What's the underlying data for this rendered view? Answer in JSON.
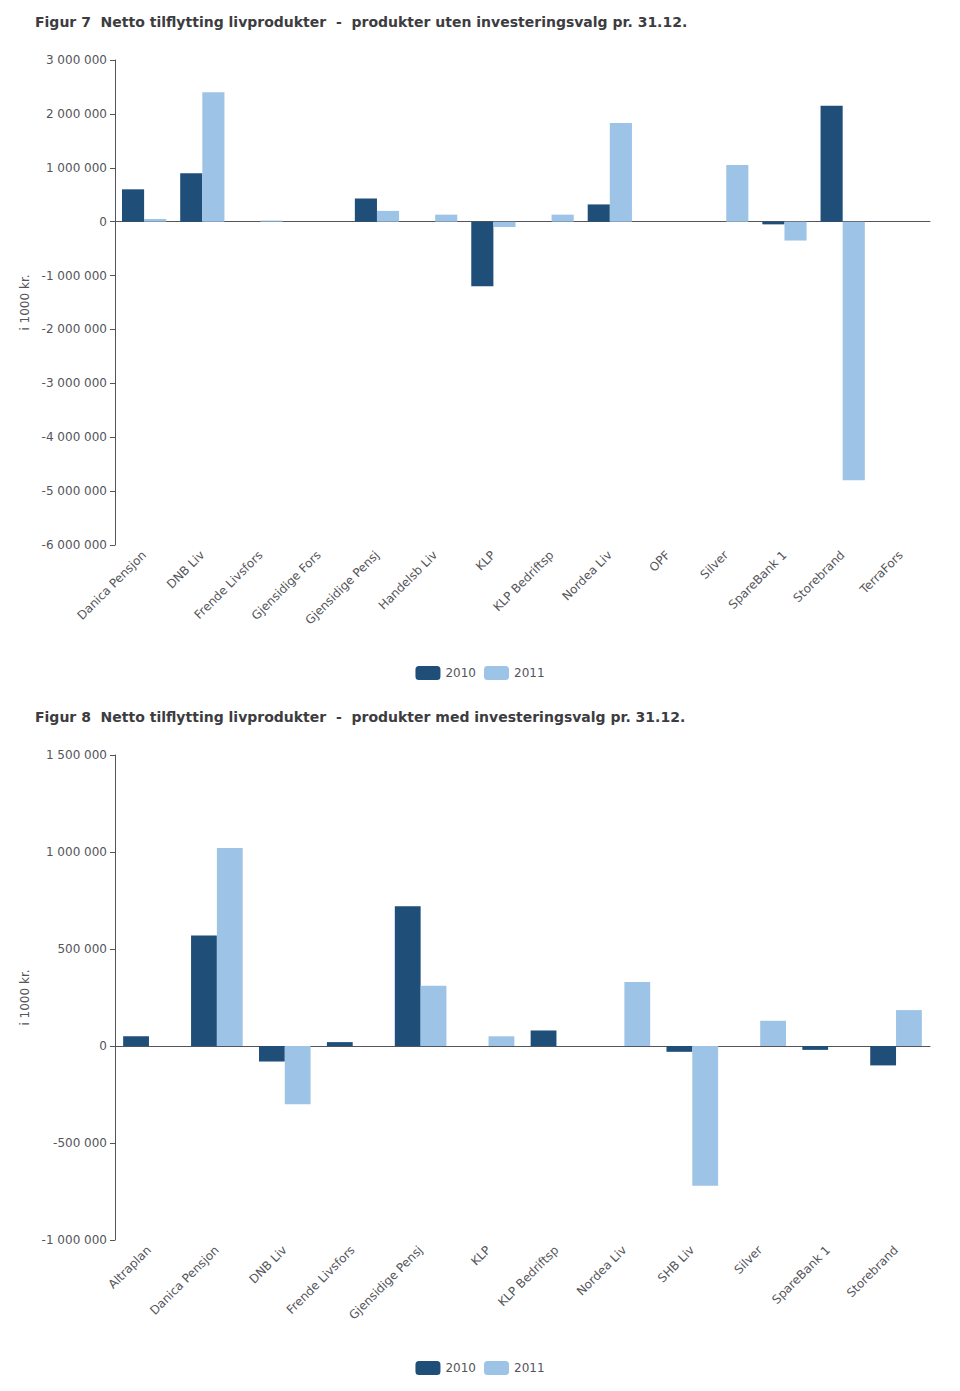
{
  "chart_data": [
    {
      "type": "bar",
      "title": "Figur 7  Netto tilflytting livprodukter  -  produkter uten investeringsvalg pr. 31.12.",
      "ylabel": "i 1000 kr.",
      "categories": [
        "Danica Pensjon",
        "DNB Liv",
        "Frende Livsfors",
        "Gjensidige Fors",
        "Gjensidige Pensj",
        "Handelsb Liv",
        "KLP",
        "KLP Bedriftsp",
        "Nordea Liv",
        "OPF",
        "Silver",
        "SpareBank 1",
        "Storebrand",
        "TerraFors"
      ],
      "series": [
        {
          "name": "2010",
          "color": "#1F4E79",
          "values": [
            600000,
            900000,
            0,
            0,
            430000,
            0,
            -1200000,
            0,
            320000,
            0,
            0,
            -50000,
            2150000,
            0
          ]
        },
        {
          "name": "2011",
          "color": "#9DC3E6",
          "values": [
            50000,
            2400000,
            20000,
            0,
            200000,
            130000,
            -100000,
            130000,
            1830000,
            0,
            1050000,
            -350000,
            -4800000,
            0
          ]
        }
      ],
      "ylim": [
        -6000000,
        3000000
      ],
      "yticks": [
        {
          "value": 3000000,
          "label": "3 000 000"
        },
        {
          "value": 2000000,
          "label": "2 000 000"
        },
        {
          "value": 1000000,
          "label": "1 000 000"
        },
        0,
        {
          "value": -1000000,
          "label": "-1 000 000"
        },
        {
          "value": -2000000,
          "label": "-2 000 000"
        },
        {
          "value": -3000000,
          "label": "-3 000 000"
        },
        {
          "value": -4000000,
          "label": "-4 000 000"
        },
        {
          "value": -5000000,
          "label": "-5 000 000"
        },
        {
          "value": -6000000,
          "label": "-6 000 000"
        }
      ],
      "grid": false,
      "legend": "bottom"
    },
    {
      "type": "bar",
      "title": "Figur 8  Netto tilflytting livprodukter  -  produkter med investeringsvalg pr. 31.12.",
      "ylabel": "i 1000 kr.",
      "categories": [
        "Altraplan",
        "Danica Pensjon",
        "DNB Liv",
        "Frende Livsfors",
        "Gjensidige Pensj",
        "KLP",
        "KLP Bedriftsp",
        "Nordea Liv",
        "SHB Liv",
        "Silver",
        "SpareBank 1",
        "Storebrand"
      ],
      "series": [
        {
          "name": "2010",
          "color": "#1F4E79",
          "values": [
            50000,
            570000,
            -80000,
            20000,
            720000,
            0,
            80000,
            0,
            -30000,
            0,
            -20000,
            -100000
          ]
        },
        {
          "name": "2011",
          "color": "#9DC3E6",
          "values": [
            0,
            1020000,
            -300000,
            0,
            310000,
            50000,
            0,
            330000,
            -720000,
            130000,
            0,
            185000
          ]
        }
      ],
      "ylim": [
        -1000000,
        1500000
      ],
      "yticks": [
        {
          "value": 1500000,
          "label": "1 500 000"
        },
        {
          "value": 1000000,
          "label": "1 000 000"
        },
        {
          "value": 500000,
          "label": "500 000"
        },
        0,
        {
          "value": -500000,
          "label": "-500 000"
        },
        {
          "value": -1000000,
          "label": "-1 000 000"
        }
      ],
      "grid": false,
      "legend": "bottom"
    }
  ]
}
